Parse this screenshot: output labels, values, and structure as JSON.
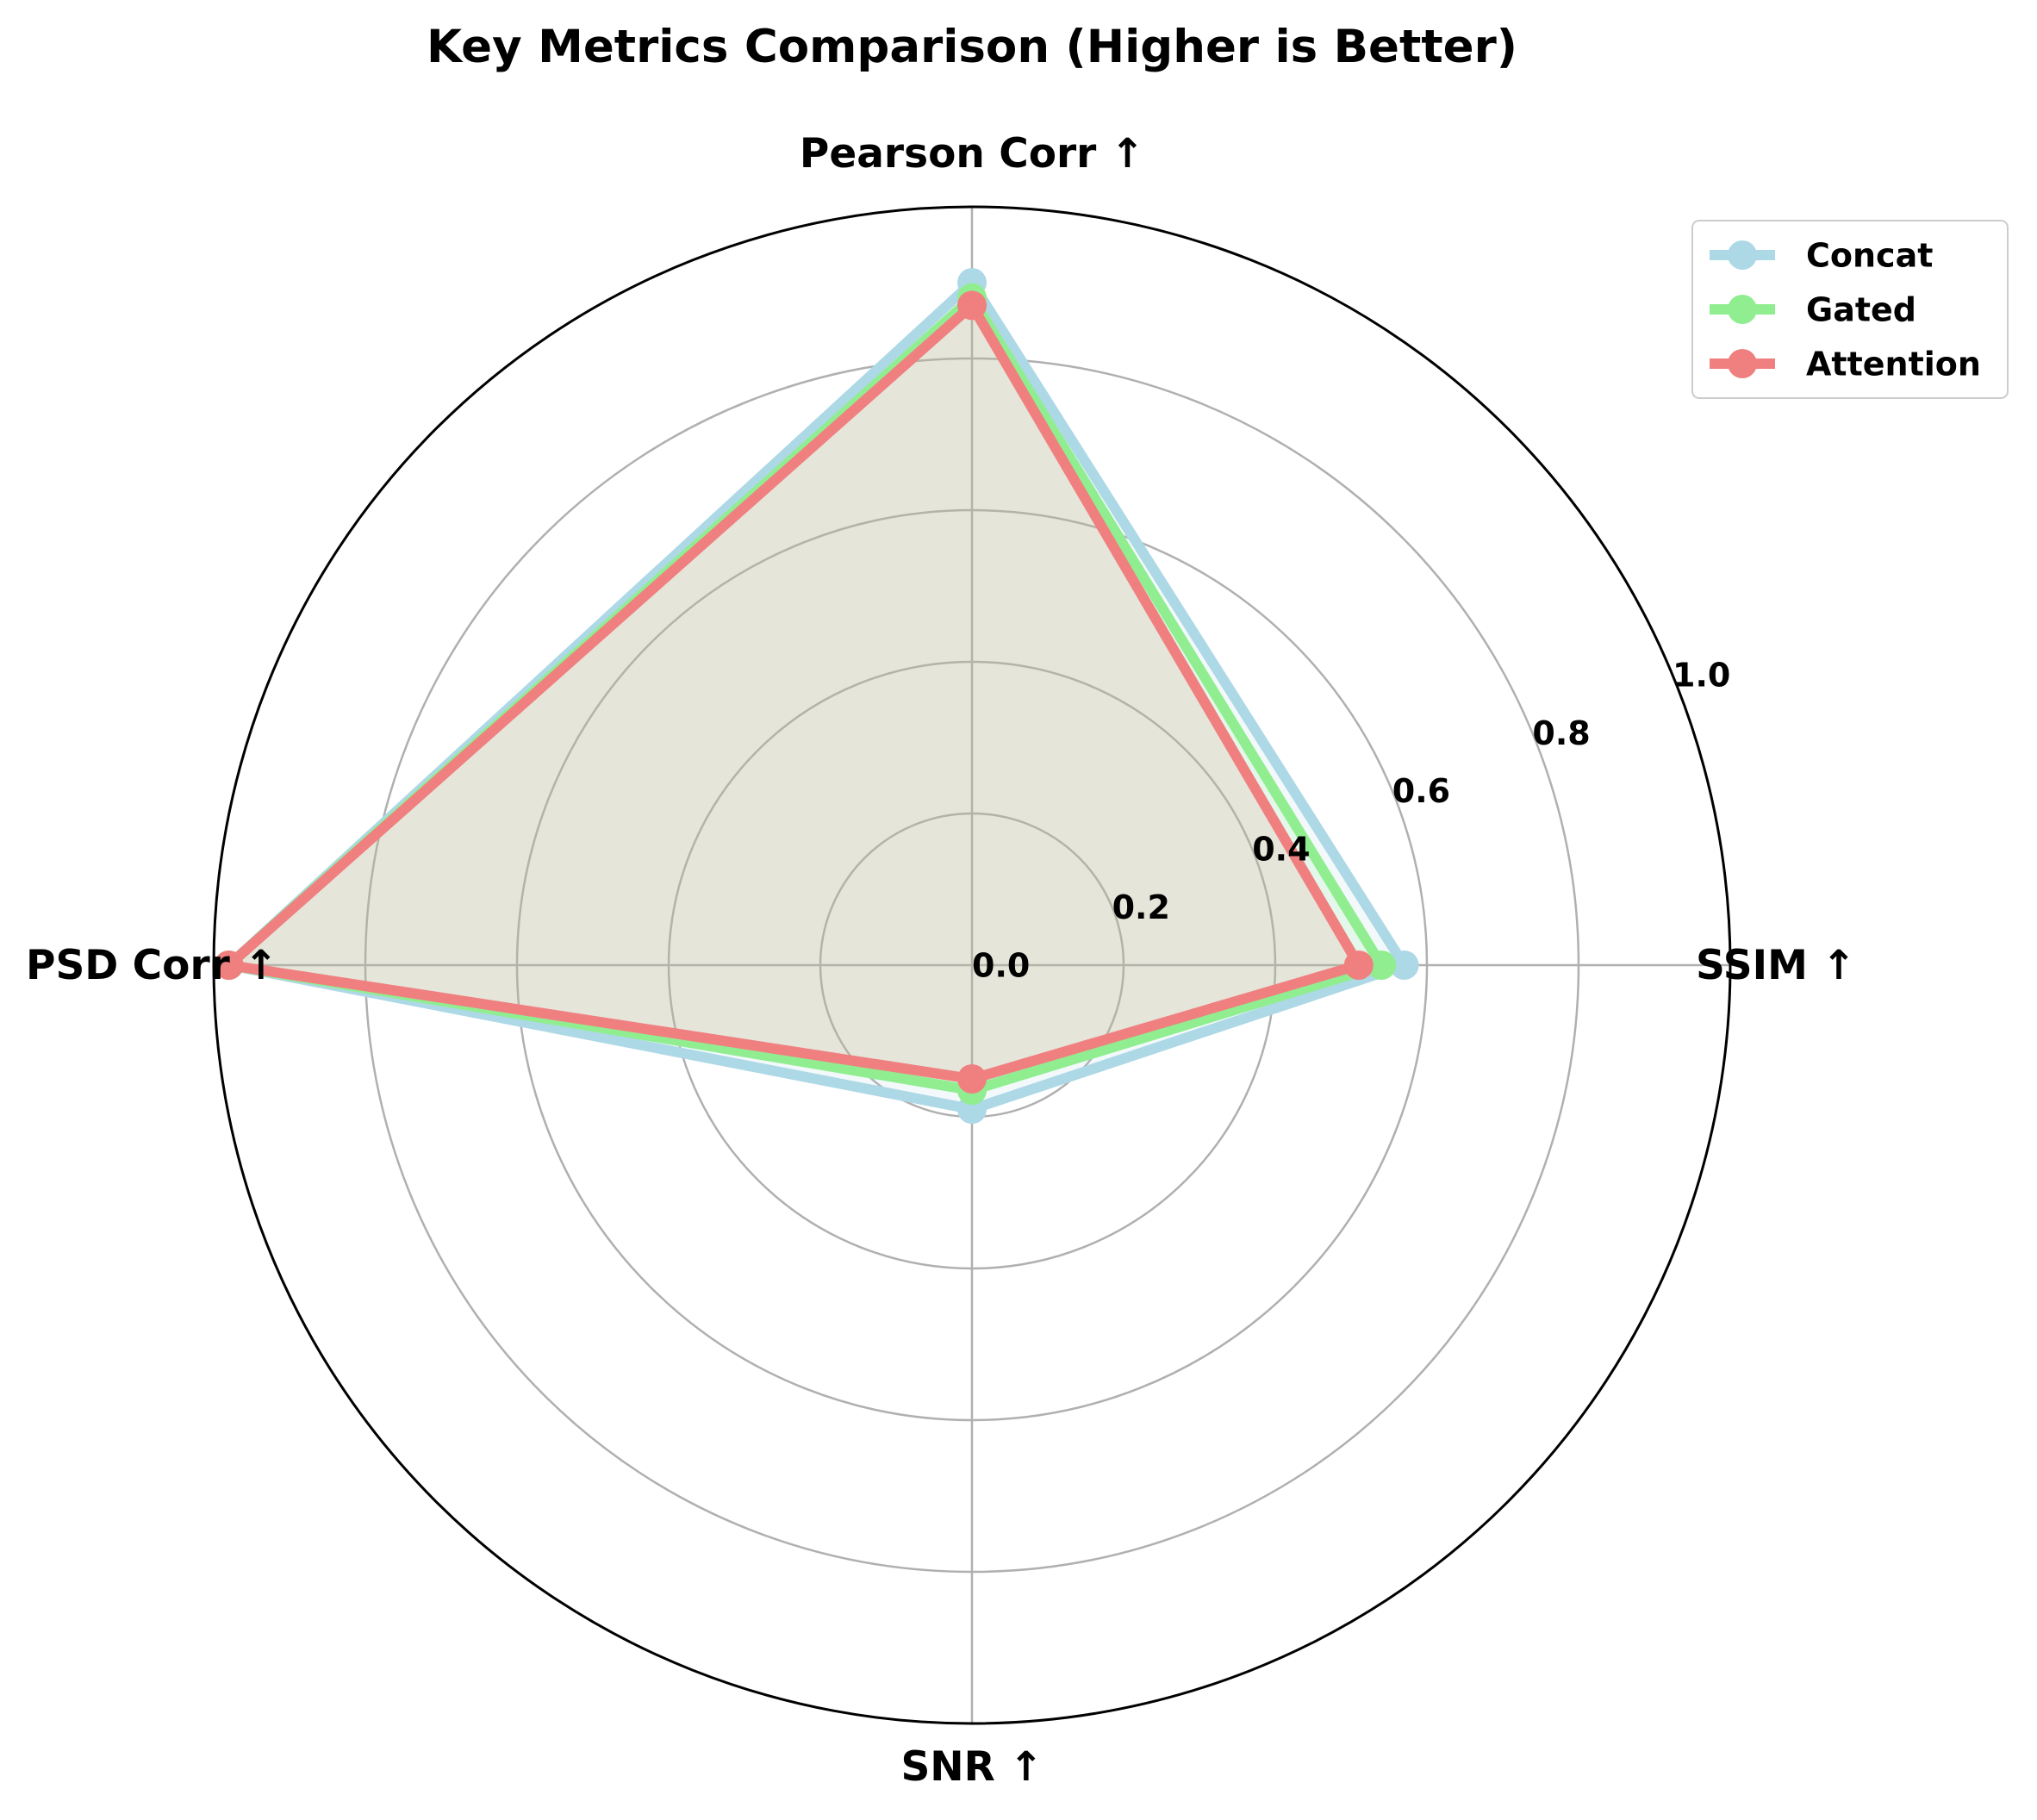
{
  "chart_data": {
    "type": "radar",
    "title": "Key Metrics Comparison (Higher is Better)",
    "axes": [
      "Pearson Corr ↑",
      "SSIM ↑",
      "SNR ↑",
      "PSD Corr ↑"
    ],
    "rlim": [
      0,
      1.0
    ],
    "rticks": [
      "0.0",
      "0.2",
      "0.4",
      "0.6",
      "0.8",
      "1.0"
    ],
    "rtick_values": [
      0.0,
      0.2,
      0.4,
      0.6,
      0.8,
      1.0
    ],
    "grid": true,
    "legend_position": "top-right",
    "series": [
      {
        "name": "Concat",
        "color": "#add8e6",
        "values": [
          0.9,
          0.57,
          0.19,
          0.98
        ]
      },
      {
        "name": "Gated",
        "color": "#90ee90",
        "values": [
          0.88,
          0.54,
          0.165,
          0.98
        ]
      },
      {
        "name": "Attention",
        "color": "#f08080",
        "values": [
          0.87,
          0.51,
          0.15,
          0.98
        ]
      }
    ]
  }
}
